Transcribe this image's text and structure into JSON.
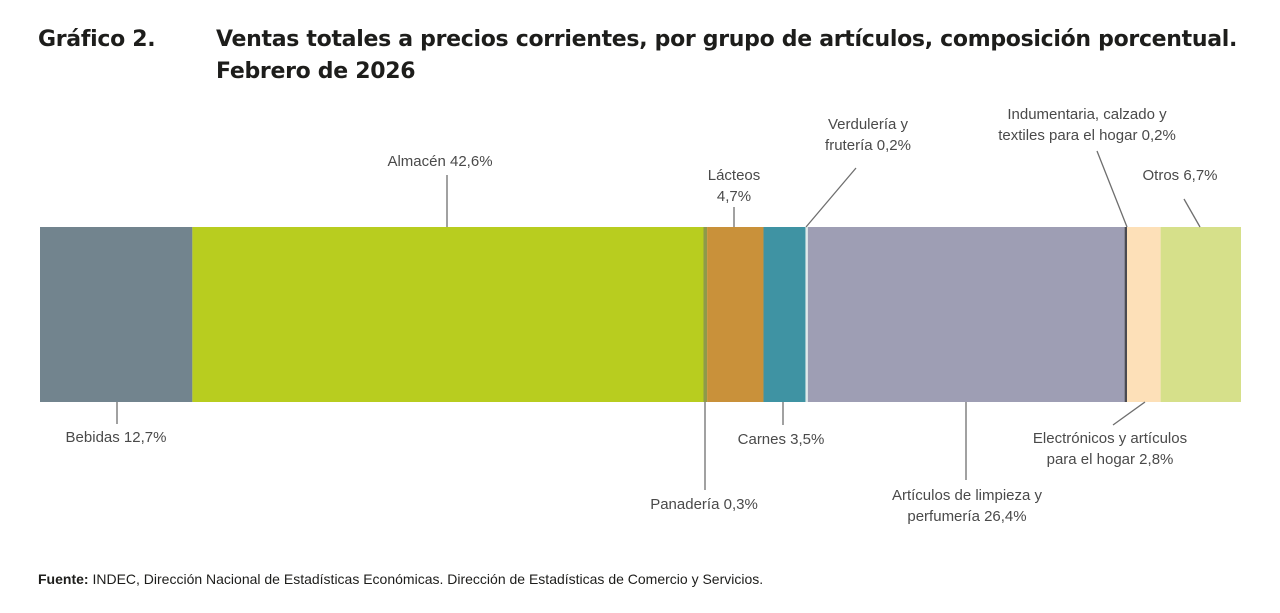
{
  "figure_number": "Gráfico 2.",
  "chart_data": {
    "type": "bar",
    "orientation": "horizontal-stacked-100",
    "title": "Ventas totales a precios corrientes, por grupo de artículos, composición porcentual.",
    "subtitle": "Febrero de 2026",
    "unit": "%",
    "segments": [
      {
        "name": "Bebidas",
        "value": 12.7,
        "label": "Bebidas 12,7%",
        "color": "#72848e"
      },
      {
        "name": "Almacén",
        "value": 42.6,
        "label": "Almacén 42,6%",
        "color": "#b8cd1f"
      },
      {
        "name": "Panadería",
        "value": 0.3,
        "label": "Panadería 0,3%",
        "color": "#8e9a4a"
      },
      {
        "name": "Lácteos",
        "value": 4.7,
        "label_l1": "Lácteos",
        "label_l2": "4,7%",
        "color": "#c9913a"
      },
      {
        "name": "Carnes",
        "value": 3.5,
        "label": "Carnes 3,5%",
        "color": "#3f93a3"
      },
      {
        "name": "Verdulería y frutería",
        "value": 0.2,
        "label_l1": "Verdulería y",
        "label_l2": "frutería 0,2%",
        "color": "#dfeaea"
      },
      {
        "name": "Artículos de limpieza y perfumería",
        "value": 26.4,
        "label_l1": "Artículos de limpieza y",
        "label_l2": "perfumería 26,4%",
        "color": "#9e9eb4"
      },
      {
        "name": "Indumentaria, calzado y textiles para el hogar",
        "value": 0.2,
        "label_l1": "Indumentaria, calzado y",
        "label_l2": "textiles para el hogar 0,2%",
        "color": "#4a4a50"
      },
      {
        "name": "Electrónicos y artículos para el hogar",
        "value": 2.8,
        "label_l1": "Electrónicos y artículos",
        "label_l2": "para el hogar 2,8%",
        "color": "#fde0b8"
      },
      {
        "name": "Otros",
        "value": 6.7,
        "label": "Otros 6,7%",
        "color": "#d6e08a"
      }
    ]
  },
  "footer": {
    "label": "Fuente:",
    "text": " INDEC, Dirección Nacional de Estadísticas Económicas. Dirección de Estadísticas de Comercio y Servicios."
  }
}
